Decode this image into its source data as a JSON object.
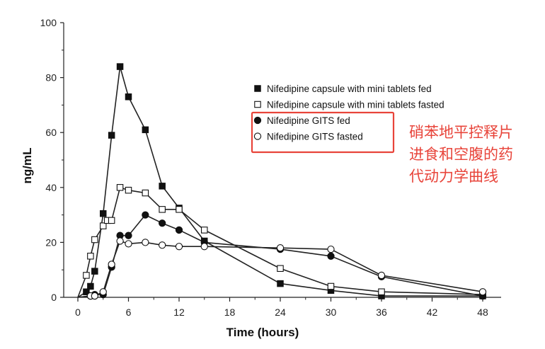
{
  "chart_data": {
    "type": "line",
    "xlabel": "Time (hours)",
    "ylabel": "ng/mL",
    "xlim": [
      0,
      48
    ],
    "ylim": [
      0,
      100
    ],
    "x_ticks": [
      0,
      6,
      12,
      18,
      24,
      30,
      36,
      42,
      48
    ],
    "y_ticks": [
      0,
      20,
      40,
      60,
      80,
      100
    ],
    "grid": false,
    "legend_position": "upper-right",
    "series": [
      {
        "name": "Nifedipine capsule with mini tablets fed",
        "marker": "square-filled",
        "x": [
          0,
          1,
          1.5,
          2,
          3,
          4,
          5,
          6,
          8,
          10,
          12,
          15,
          24,
          30,
          36,
          48
        ],
        "y": [
          0,
          2,
          4,
          9.5,
          30.5,
          59,
          84,
          73,
          61,
          40.5,
          32.5,
          20.5,
          5,
          2.5,
          0.5,
          0.5
        ]
      },
      {
        "name": "Nifedipine capsule with mini tablets fasted",
        "marker": "square-open",
        "x": [
          0,
          1,
          1.5,
          2,
          3,
          3.5,
          4,
          5,
          6,
          8,
          10,
          12,
          15,
          24,
          30,
          36,
          48
        ],
        "y": [
          0,
          8,
          15,
          21,
          26,
          28,
          28,
          40,
          39,
          38,
          32,
          32,
          24.5,
          10.5,
          4,
          2,
          1
        ]
      },
      {
        "name": "Nifedipine GITS fed",
        "marker": "circle-filled",
        "x": [
          0,
          1.5,
          2,
          3,
          4,
          5,
          6,
          8,
          10,
          12,
          15,
          24,
          30,
          36,
          48
        ],
        "y": [
          0,
          0.5,
          1,
          1,
          11,
          22.5,
          22.5,
          30,
          27,
          24.5,
          20,
          17.5,
          15,
          7.5,
          0.5
        ]
      },
      {
        "name": "Nifedipine GITS fasted",
        "marker": "circle-open",
        "x": [
          0,
          1.5,
          2,
          3,
          4,
          5,
          6,
          8,
          10,
          12,
          15,
          24,
          30,
          36,
          48
        ],
        "y": [
          0,
          0.5,
          0.5,
          2,
          12,
          20.5,
          19.5,
          20,
          19,
          18.5,
          18.5,
          18,
          17.5,
          8,
          2
        ]
      }
    ],
    "annotation": {
      "text_lines": [
        "硝苯地平控释片",
        "进食和空腹的药",
        "代动力学曲线"
      ],
      "box_color": "#e8443a",
      "text_color": "#e8443a"
    }
  }
}
